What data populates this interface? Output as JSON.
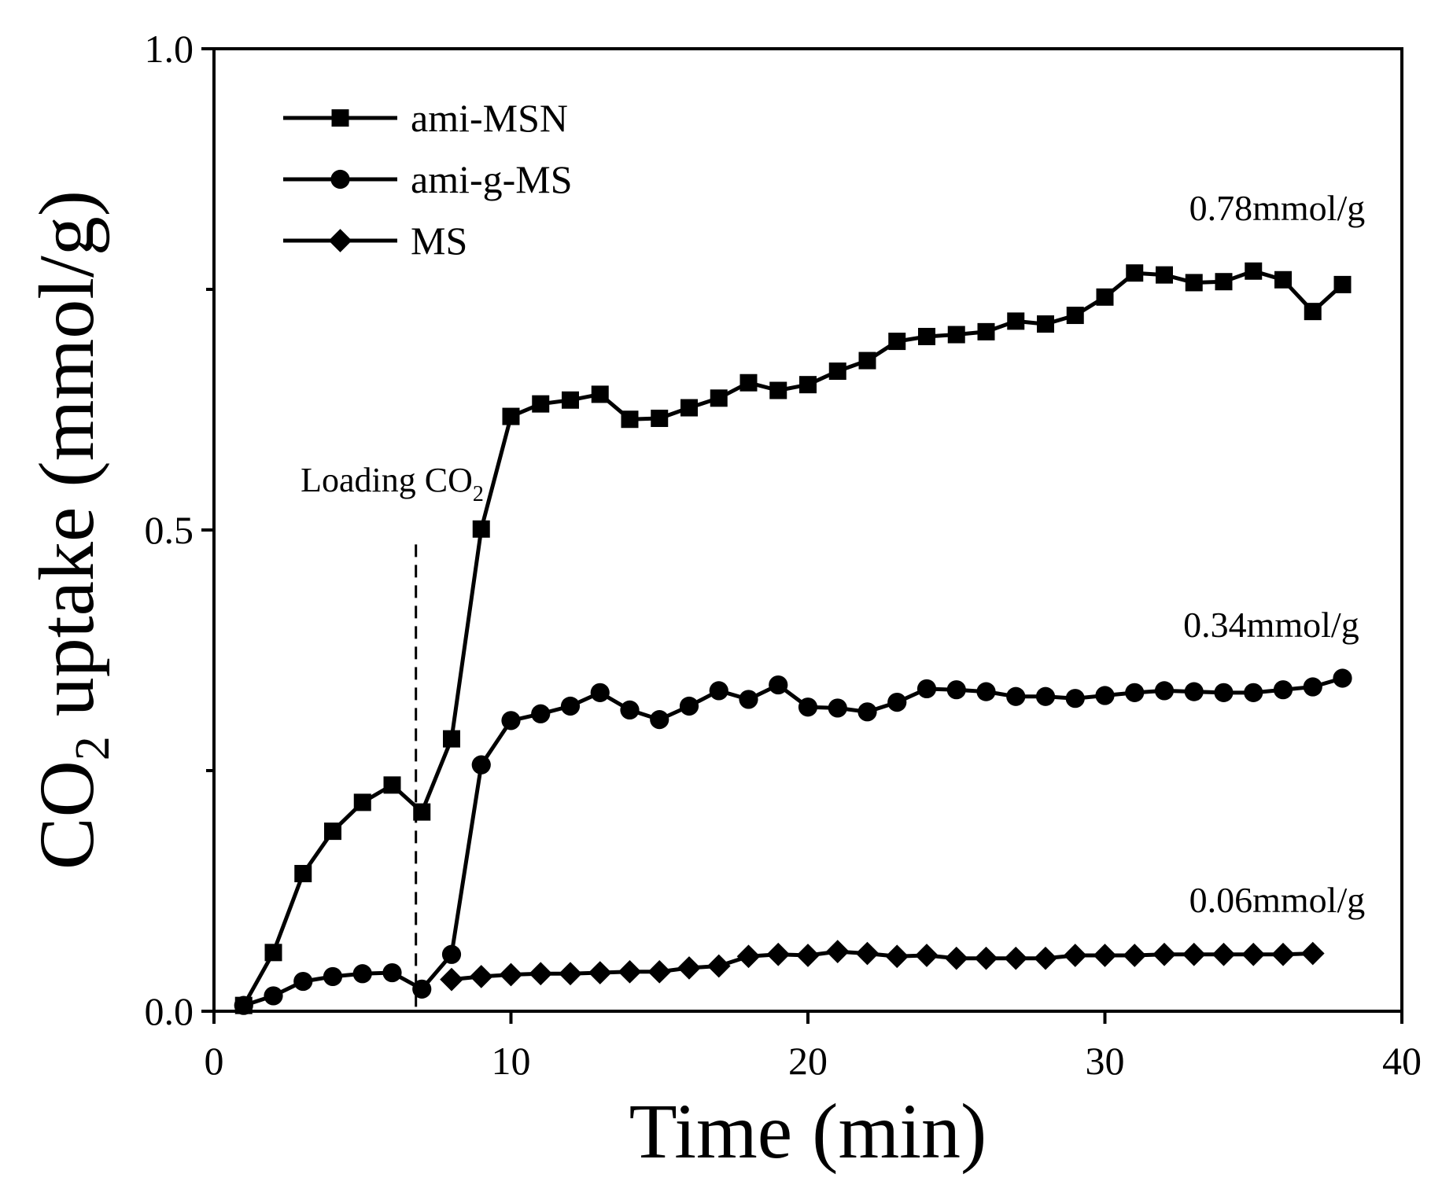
{
  "chart_data": {
    "type": "line",
    "xlabel": "Time (min)",
    "ylabel": {
      "pre": "CO",
      "sub": "2",
      "post": " uptake (mmol/g)"
    },
    "xlim": [
      0,
      40
    ],
    "ylim": [
      0.0,
      1.0
    ],
    "xticks": [
      0,
      10,
      20,
      30,
      40
    ],
    "xtick_labels": [
      "0",
      "10",
      "20",
      "30",
      "40"
    ],
    "yticks": [
      0.0,
      0.5,
      1.0
    ],
    "ytick_labels": [
      "0.0",
      "0.5",
      "1.0"
    ],
    "y_minor_ticks": [
      0.25,
      0.75
    ],
    "legend_position": "top-left",
    "series": [
      {
        "name": "ami-MSN",
        "marker": "square",
        "x": [
          1,
          2,
          3,
          4,
          5,
          6,
          7,
          8,
          9,
          10,
          11,
          12,
          13,
          14,
          15,
          16,
          17,
          18,
          19,
          20,
          21,
          22,
          23,
          24,
          25,
          26,
          27,
          28,
          29,
          30,
          31,
          32,
          33,
          34,
          35,
          36,
          37,
          38
        ],
        "y": [
          0.006,
          0.061,
          0.143,
          0.187,
          0.217,
          0.235,
          0.207,
          0.283,
          0.501,
          0.618,
          0.631,
          0.635,
          0.641,
          0.615,
          0.616,
          0.627,
          0.637,
          0.653,
          0.645,
          0.651,
          0.665,
          0.676,
          0.696,
          0.701,
          0.703,
          0.706,
          0.717,
          0.714,
          0.723,
          0.742,
          0.767,
          0.765,
          0.757,
          0.758,
          0.769,
          0.76,
          0.727,
          0.755
        ]
      },
      {
        "name": "ami-g-MS",
        "marker": "circle",
        "x": [
          1,
          2,
          3,
          4,
          5,
          6,
          7,
          8,
          9,
          10,
          11,
          12,
          13,
          14,
          15,
          16,
          17,
          18,
          19,
          20,
          21,
          22,
          23,
          24,
          25,
          26,
          27,
          28,
          29,
          30,
          31,
          32,
          33,
          34,
          35,
          36,
          37,
          38
        ],
        "y": [
          0.006,
          0.016,
          0.031,
          0.036,
          0.039,
          0.04,
          0.023,
          0.059,
          0.256,
          0.302,
          0.309,
          0.317,
          0.331,
          0.313,
          0.303,
          0.317,
          0.333,
          0.324,
          0.339,
          0.316,
          0.315,
          0.311,
          0.321,
          0.335,
          0.334,
          0.332,
          0.327,
          0.327,
          0.325,
          0.328,
          0.331,
          0.333,
          0.332,
          0.331,
          0.331,
          0.334,
          0.337,
          0.346
        ]
      },
      {
        "name": "MS",
        "marker": "diamond",
        "x": [
          8,
          9,
          10,
          11,
          12,
          13,
          14,
          15,
          16,
          17,
          18,
          19,
          20,
          21,
          22,
          23,
          24,
          25,
          26,
          27,
          28,
          29,
          30,
          31,
          32,
          33,
          34,
          35,
          36,
          37
        ],
        "y": [
          0.033,
          0.036,
          0.038,
          0.039,
          0.039,
          0.04,
          0.041,
          0.041,
          0.045,
          0.047,
          0.057,
          0.059,
          0.058,
          0.062,
          0.06,
          0.057,
          0.058,
          0.055,
          0.055,
          0.055,
          0.055,
          0.058,
          0.058,
          0.058,
          0.059,
          0.059,
          0.059,
          0.059,
          0.059,
          0.06
        ]
      }
    ],
    "annotations": [
      {
        "text": "0.78mmol/g",
        "x": 35.8,
        "y": 0.822
      },
      {
        "text": "0.34mmol/g",
        "x": 35.6,
        "y": 0.389
      },
      {
        "text": "0.06mmol/g",
        "x": 35.8,
        "y": 0.103
      }
    ],
    "loading_annotation": {
      "text_pre": "Loading CO",
      "text_sub": "2",
      "line_x": 6.8,
      "line_y": [
        0.0,
        0.485
      ],
      "label_x": 6.0,
      "label_y": 0.54
    }
  }
}
